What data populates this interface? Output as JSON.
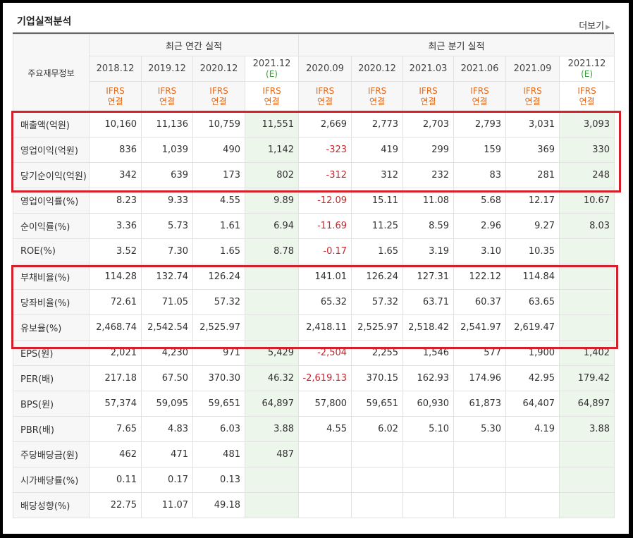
{
  "section_title": "기업실적분석",
  "more_label": "더보기",
  "more_arrow": "▶",
  "header": {
    "corner_label": "주요재무정보",
    "annual_group": "최근 연간 실적",
    "quarter_group": "최근 분기 실적",
    "periods": [
      {
        "label": "2018.12",
        "est": ""
      },
      {
        "label": "2019.12",
        "est": ""
      },
      {
        "label": "2020.12",
        "est": ""
      },
      {
        "label": "2021.12",
        "est": "(E)"
      },
      {
        "label": "2020.09",
        "est": ""
      },
      {
        "label": "2020.12",
        "est": ""
      },
      {
        "label": "2021.03",
        "est": ""
      },
      {
        "label": "2021.06",
        "est": ""
      },
      {
        "label": "2021.09",
        "est": ""
      },
      {
        "label": "2021.12",
        "est": "(E)"
      }
    ],
    "ifrs_line1": "IFRS",
    "ifrs_line2": "연결"
  },
  "rows": [
    {
      "label": "매출액(억원)",
      "values": [
        "10,160",
        "11,136",
        "10,759",
        "11,551",
        "2,669",
        "2,773",
        "2,703",
        "2,793",
        "3,031",
        "3,093"
      ]
    },
    {
      "label": "영업이익(억원)",
      "values": [
        "836",
        "1,039",
        "490",
        "1,142",
        "-323",
        "419",
        "299",
        "159",
        "369",
        "330"
      ]
    },
    {
      "label": "당기순이익(억원)",
      "values": [
        "342",
        "639",
        "173",
        "802",
        "-312",
        "312",
        "232",
        "83",
        "281",
        "248"
      ]
    },
    {
      "label": "영업이익률(%)",
      "values": [
        "8.23",
        "9.33",
        "4.55",
        "9.89",
        "-12.09",
        "15.11",
        "11.08",
        "5.68",
        "12.17",
        "10.67"
      ]
    },
    {
      "label": "순이익률(%)",
      "values": [
        "3.36",
        "5.73",
        "1.61",
        "6.94",
        "-11.69",
        "11.25",
        "8.59",
        "2.96",
        "9.27",
        "8.03"
      ]
    },
    {
      "label": "ROE(%)",
      "values": [
        "3.52",
        "7.30",
        "1.65",
        "8.78",
        "-0.17",
        "1.65",
        "3.19",
        "3.10",
        "10.35",
        ""
      ]
    },
    {
      "label": "부채비율(%)",
      "values": [
        "114.28",
        "132.74",
        "126.24",
        "",
        "141.01",
        "126.24",
        "127.31",
        "122.12",
        "114.84",
        ""
      ]
    },
    {
      "label": "당좌비율(%)",
      "values": [
        "72.61",
        "71.05",
        "57.32",
        "",
        "65.32",
        "57.32",
        "63.71",
        "60.37",
        "63.65",
        ""
      ]
    },
    {
      "label": "유보율(%)",
      "values": [
        "2,468.74",
        "2,542.54",
        "2,525.97",
        "",
        "2,418.11",
        "2,525.97",
        "2,518.42",
        "2,541.97",
        "2,619.47",
        ""
      ]
    },
    {
      "label": "EPS(원)",
      "values": [
        "2,021",
        "4,230",
        "971",
        "5,429",
        "-2,504",
        "2,255",
        "1,546",
        "577",
        "1,900",
        "1,402"
      ]
    },
    {
      "label": "PER(배)",
      "values": [
        "217.18",
        "67.50",
        "370.30",
        "46.32",
        "-2,619.13",
        "370.15",
        "162.93",
        "174.96",
        "42.95",
        "179.42"
      ]
    },
    {
      "label": "BPS(원)",
      "values": [
        "57,374",
        "59,095",
        "59,651",
        "64,897",
        "57,800",
        "59,651",
        "60,930",
        "61,873",
        "64,407",
        "64,897"
      ]
    },
    {
      "label": "PBR(배)",
      "values": [
        "7.65",
        "4.83",
        "6.03",
        "3.88",
        "4.55",
        "6.02",
        "5.10",
        "5.30",
        "4.19",
        "3.88"
      ]
    },
    {
      "label": "주당배당금(원)",
      "values": [
        "462",
        "471",
        "481",
        "487",
        "",
        "",
        "",
        "",
        "",
        ""
      ]
    },
    {
      "label": "시가배당률(%)",
      "values": [
        "0.11",
        "0.17",
        "0.13",
        "",
        "",
        "",
        "",
        "",
        "",
        ""
      ]
    },
    {
      "label": "배당성향(%)",
      "values": [
        "22.75",
        "11.07",
        "49.18",
        "",
        "",
        "",
        "",
        "",
        "",
        ""
      ]
    }
  ],
  "colors": {
    "negative": "#c8242a",
    "ifrs": "#e06a1e",
    "estimate_bg": "#edf6ea",
    "highlight_box": "#d51f2a"
  }
}
